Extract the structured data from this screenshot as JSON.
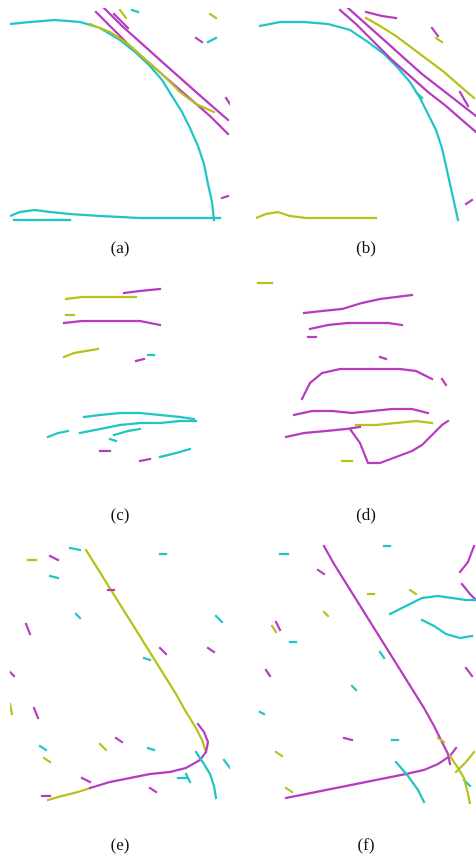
{
  "figure": {
    "captions": {
      "a": "(a)",
      "b": "(b)",
      "c": "(c)",
      "d": "(d)",
      "e": "(e)",
      "f": "(f)"
    }
  },
  "colors": {
    "cyan": "#1fc4c4",
    "magenta": "#b63bc0",
    "yellow": "#b7c11a",
    "background": "#ffffff"
  }
}
